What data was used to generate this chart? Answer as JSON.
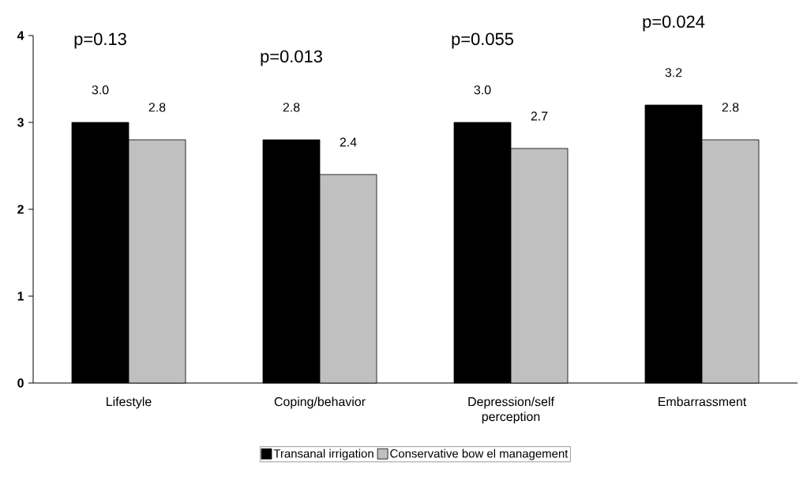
{
  "chart_data": {
    "type": "bar",
    "categories": [
      "Lifestyle",
      "Coping/behavior",
      "Depression/self perception",
      "Embarrassment"
    ],
    "series": [
      {
        "name": "Transanal irrigation",
        "color": "#000000",
        "values": [
          3.0,
          2.8,
          3.0,
          3.2
        ],
        "value_labels": [
          "3.0",
          "2.8",
          "3.0",
          "3.2"
        ]
      },
      {
        "name": "Conservative bow el management",
        "color": "#c0c0c0",
        "values": [
          2.8,
          2.4,
          2.7,
          2.8
        ],
        "value_labels": [
          "2.8",
          "2.4",
          "2.7",
          "2.8"
        ]
      }
    ],
    "ylim": [
      0,
      4
    ],
    "yticks": [
      0,
      1,
      2,
      3,
      4
    ],
    "annotations": [
      "p=0.13",
      "p=0.013",
      "p=0.055",
      "p=0.024"
    ],
    "grid": false,
    "legend": "bottom"
  }
}
